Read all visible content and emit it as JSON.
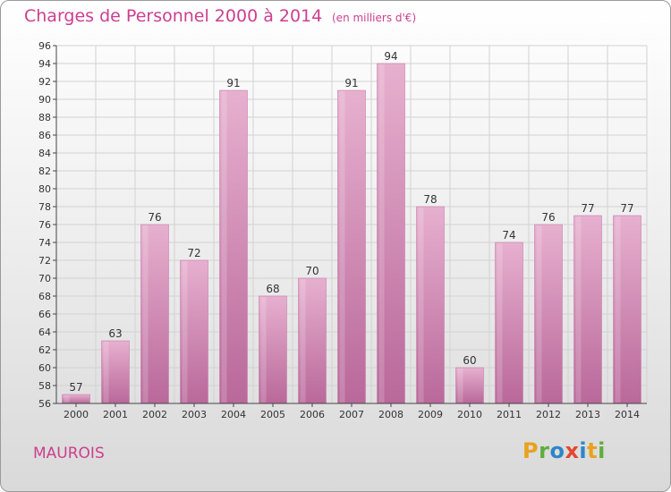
{
  "header": {
    "title": "Charges de Personnel 2000 à 2014",
    "subtitle": "(en milliers d'€)"
  },
  "footer": {
    "commune": "MAUROIS",
    "logo_text": "Proxiti",
    "logo_colors": [
      "#e8a21f",
      "#5fae3c",
      "#2e86c8",
      "#e2462f",
      "#2e86c8",
      "#e8a21f",
      "#5fae3c"
    ]
  },
  "colors": {
    "bar": "#d98bb8",
    "bar_light": "#e7b0cf",
    "bar_dark": "#b9689a",
    "grid": "#d2d2d2",
    "axis": "#444444",
    "text": "#333333"
  },
  "chart_data": {
    "type": "bar",
    "title": "Charges de Personnel 2000 à 2014",
    "subtitle": "(en milliers d'€)",
    "categories": [
      "2000",
      "2001",
      "2002",
      "2003",
      "2004",
      "2005",
      "2006",
      "2007",
      "2008",
      "2009",
      "2010",
      "2011",
      "2012",
      "2013",
      "2014"
    ],
    "values": [
      57,
      63,
      76,
      72,
      91,
      68,
      70,
      91,
      94,
      78,
      60,
      74,
      76,
      77,
      77
    ],
    "ylim": [
      56,
      96
    ],
    "yticks": [
      56,
      58,
      60,
      62,
      64,
      66,
      68,
      70,
      72,
      74,
      76,
      78,
      80,
      82,
      84,
      86,
      88,
      90,
      92,
      94,
      96
    ],
    "grid": true,
    "data_labels": true
  }
}
